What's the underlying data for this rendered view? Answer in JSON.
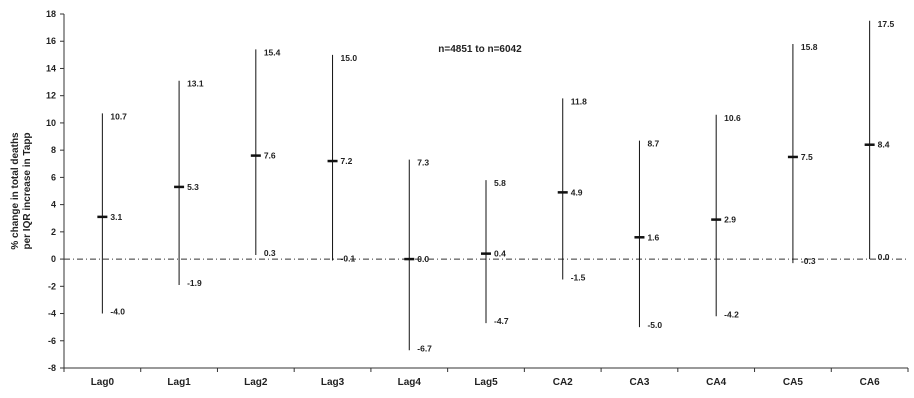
{
  "chart_data": {
    "type": "errorbar",
    "annotation": "n=4851 to n=6042",
    "ylabel_line1": "% change in total deaths",
    "ylabel_line2": "per IQR increase in Tapp",
    "ylim": [
      -8,
      18
    ],
    "yticks": [
      -8,
      -6,
      -4,
      -2,
      0,
      2,
      4,
      6,
      8,
      10,
      12,
      14,
      16,
      18
    ],
    "reference_line": 0,
    "grid": false,
    "points": [
      {
        "category": "Lag0",
        "estimate": 3.1,
        "upper": 10.7,
        "lower": -4.0,
        "est_label": "3.1",
        "upper_label": "10.7",
        "lower_label": "-4.0"
      },
      {
        "category": "Lag1",
        "estimate": 5.3,
        "upper": 13.1,
        "lower": -1.9,
        "est_label": "5.3",
        "upper_label": "13.1",
        "lower_label": "-1.9"
      },
      {
        "category": "Lag2",
        "estimate": 7.6,
        "upper": 15.4,
        "lower": 0.3,
        "est_label": "7.6",
        "upper_label": "15.4",
        "lower_label": "0.3"
      },
      {
        "category": "Lag3",
        "estimate": 7.2,
        "upper": 15.0,
        "lower": -0.1,
        "est_label": "7.2",
        "upper_label": "15.0",
        "lower_label": "-0.1"
      },
      {
        "category": "Lag4",
        "estimate": 0.0,
        "upper": 7.3,
        "lower": -6.7,
        "est_label": "0.0",
        "upper_label": "7.3",
        "lower_label": "-6.7"
      },
      {
        "category": "Lag5",
        "estimate": 0.4,
        "upper": 5.8,
        "lower": -4.7,
        "est_label": "0.4",
        "upper_label": "5.8",
        "lower_label": "-4.7"
      },
      {
        "category": "CA2",
        "estimate": 4.9,
        "upper": 11.8,
        "lower": -1.5,
        "est_label": "4.9",
        "upper_label": "11.8",
        "lower_label": "-1.5"
      },
      {
        "category": "CA3",
        "estimate": 1.6,
        "upper": 8.7,
        "lower": -5.0,
        "est_label": "1.6",
        "upper_label": "8.7",
        "lower_label": "-5.0"
      },
      {
        "category": "CA4",
        "estimate": 2.9,
        "upper": 10.6,
        "lower": -4.2,
        "est_label": "2.9",
        "upper_label": "10.6",
        "lower_label": "-4.2"
      },
      {
        "category": "CA5",
        "estimate": 7.5,
        "upper": 15.8,
        "lower": -0.3,
        "est_label": "7.5",
        "upper_label": "15.8",
        "lower_label": "-0.3"
      },
      {
        "category": "CA6",
        "estimate": 8.4,
        "upper": 17.5,
        "lower": 0.0,
        "est_label": "8.4",
        "upper_label": "17.5",
        "lower_label": "0.0"
      }
    ]
  }
}
